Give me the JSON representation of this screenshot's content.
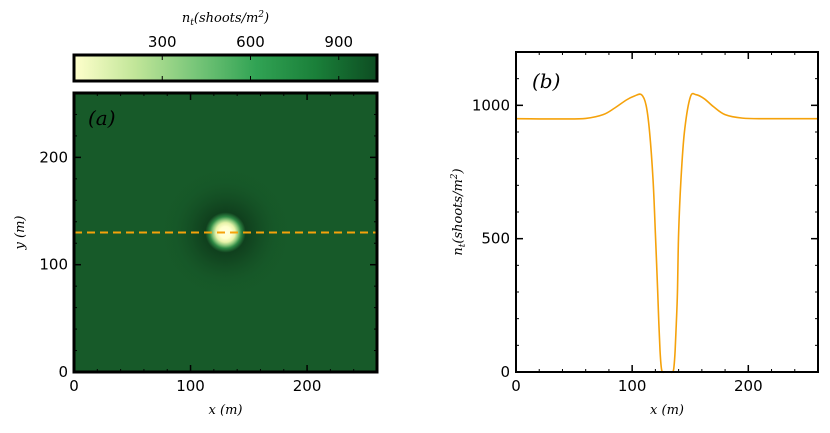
{
  "chart_data": [
    {
      "type": "heatmap",
      "panel_label": "(a)",
      "xlabel": "x (m)",
      "ylabel": "y (m)",
      "xlim": [
        0,
        260
      ],
      "ylim": [
        0,
        260
      ],
      "xticks": [
        0,
        100,
        200
      ],
      "yticks": [
        0,
        100,
        200
      ],
      "background_value": 950,
      "gap": {
        "center_x": 130,
        "center_y": 130,
        "min_value": 0
      },
      "transect_y": 130,
      "transect_color": "#f5a20b",
      "colorbar": {
        "label": "n_t(shoots/m^2)",
        "label_base": "n",
        "label_sub": "t",
        "label_rest": "(shoots/m",
        "label_sup": "2",
        "label_close": ")",
        "range": [
          0,
          1030
        ],
        "ticks": [
          300,
          600,
          900
        ],
        "colors": [
          "#ffffcc",
          "#c2e699",
          "#78c679",
          "#31a354",
          "#1a7f39",
          "#0d4d22"
        ]
      },
      "field_color": "#175a29"
    },
    {
      "type": "line",
      "panel_label": "(b)",
      "xlabel": "x (m)",
      "ylabel": "n_t(shoots/m^2)",
      "xlim": [
        0,
        260
      ],
      "ylim": [
        0,
        1200
      ],
      "xticks": [
        0,
        100,
        200
      ],
      "yticks": [
        0,
        500,
        1000
      ],
      "line_color": "#f5a20b",
      "series": [
        {
          "x": [
            0,
            20,
            40,
            60,
            75,
            85,
            95,
            102,
            108,
            112,
            115,
            118,
            120,
            122,
            123,
            124,
            125,
            126,
            128,
            132,
            135,
            136,
            137,
            138,
            139,
            140,
            142,
            145,
            150,
            155,
            162,
            170,
            180,
            195,
            215,
            240,
            260
          ],
          "values": [
            950,
            949,
            949,
            951,
            965,
            990,
            1020,
            1035,
            1040,
            1000,
            900,
            720,
            520,
            300,
            180,
            80,
            20,
            0,
            0,
            0,
            0,
            20,
            80,
            180,
            300,
            520,
            720,
            900,
            1030,
            1040,
            1025,
            995,
            965,
            952,
            950,
            950,
            950
          ]
        }
      ]
    }
  ]
}
